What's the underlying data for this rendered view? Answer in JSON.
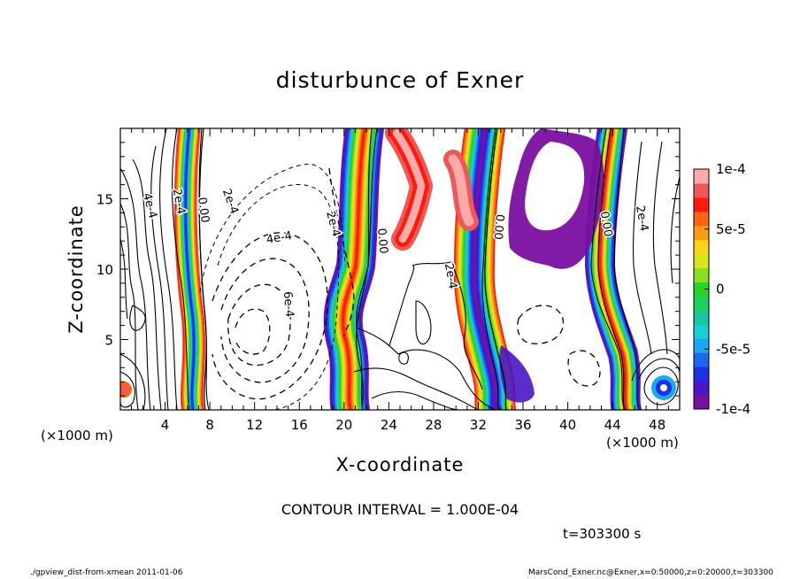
{
  "chart_data": {
    "type": "heatmap",
    "title": "disturbunce of Exner",
    "xlabel": "X-coordinate",
    "ylabel": "Z-coordinate",
    "x_unit": "(×1000 m)",
    "z_unit": "(×1000 m)",
    "xlim": [
      0,
      50
    ],
    "ylim": [
      0,
      20
    ],
    "x_ticks": [
      4,
      8,
      12,
      16,
      20,
      24,
      28,
      32,
      36,
      40,
      44,
      48
    ],
    "y_ticks": [
      5,
      10,
      15
    ],
    "colorbar": {
      "range": [
        -0.0001,
        0.0001
      ],
      "tick_labels": [
        "1e-4",
        "5e-5",
        "0",
        "-5e-5",
        "-1e-4"
      ],
      "tick_values": [
        0.0001,
        5e-05,
        0,
        -5e-05,
        -0.0001
      ],
      "colors": [
        "#7b0fa0",
        "#4a16c8",
        "#1f2fe6",
        "#1f67f0",
        "#19a8f2",
        "#18cfd8",
        "#18c8a0",
        "#1ed060",
        "#27d327",
        "#86e01c",
        "#d6e61c",
        "#ffd21a",
        "#ff9b12",
        "#ff6210",
        "#ff1a0c",
        "#f25757",
        "#ffaaaa"
      ]
    },
    "contour_labels": [
      {
        "text": "4e-4",
        "x": 2.6,
        "z": 14.5,
        "rot": 75
      },
      {
        "text": "2e-4",
        "x": 5.2,
        "z": 14.8,
        "rot": 80
      },
      {
        "text": "0.00",
        "x": 7.4,
        "z": 14.2,
        "rot": 82
      },
      {
        "text": "2e-4",
        "x": 9.8,
        "z": 14.8,
        "rot": 70
      },
      {
        "text": "4e-4",
        "x": 14.2,
        "z": 12.2,
        "rot": -10
      },
      {
        "text": "6e-4",
        "x": 15.0,
        "z": 7.5,
        "rot": 85
      },
      {
        "text": "2e-4",
        "x": 19.0,
        "z": 13.2,
        "rot": 75
      },
      {
        "text": "0.00",
        "x": 23.4,
        "z": 12.0,
        "rot": 85
      },
      {
        "text": "2e-4",
        "x": 29.5,
        "z": 9.5,
        "rot": 80
      },
      {
        "text": "0.00",
        "x": 33.8,
        "z": 13.0,
        "rot": 95
      },
      {
        "text": "0.00",
        "x": 43.4,
        "z": 13.2,
        "rot": 80
      },
      {
        "text": "2e-4",
        "x": 46.6,
        "z": 13.6,
        "rot": 80
      }
    ]
  },
  "labels": {
    "contour_interval": "CONTOUR INTERVAL = 1.000E-04",
    "time": "t=303300 s",
    "footer_left": "./gpview_dist-from-xmean  2011-01-06",
    "footer_right": "MarsCond_Exner.nc@Exner,x=0:50000,z=0:20000,t=303300"
  }
}
